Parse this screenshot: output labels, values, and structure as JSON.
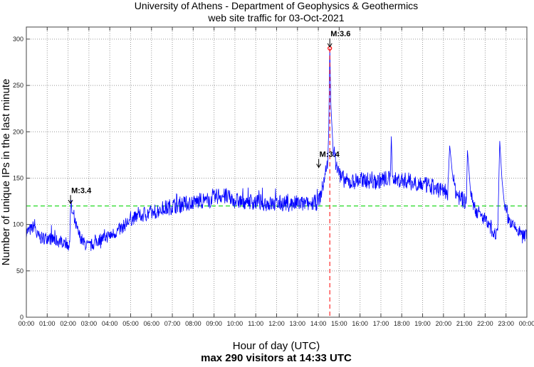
{
  "chart_data": {
    "type": "line",
    "title": [
      "University of Athens - Department of Geophysics & Geothermics",
      "web site traffic for 03-Oct-2021"
    ],
    "xlabel": "Hour of day (UTC)",
    "subxlabel": "max 290 visitors at 14:33 UTC",
    "ylabel": "Number of unique IPs in the last minute",
    "xlim": [
      0,
      24
    ],
    "ylim": [
      0,
      313
    ],
    "grid": true,
    "xticks": [
      "00:00",
      "01:00",
      "02:00",
      "03:00",
      "04:00",
      "05:00",
      "06:00",
      "07:00",
      "08:00",
      "09:00",
      "10:00",
      "11:00",
      "12:00",
      "13:00",
      "14:00",
      "15:00",
      "16:00",
      "17:00",
      "18:00",
      "19:00",
      "20:00",
      "21:00",
      "22:00",
      "23:00",
      "00:00"
    ],
    "yticks": [
      0,
      50,
      100,
      150,
      200,
      250,
      300
    ],
    "reference_line": {
      "y": 120,
      "color": "#33dd33",
      "style": "dashed"
    },
    "max_marker": {
      "x": 14.55,
      "y": 290,
      "color": "#ff0000"
    },
    "series": [
      {
        "name": "unique IPs",
        "color": "#0000ff",
        "points": [
          [
            0,
            92
          ],
          [
            0.25,
            95
          ],
          [
            0.4,
            100
          ],
          [
            0.5,
            88
          ],
          [
            0.75,
            85
          ],
          [
            1,
            86
          ],
          [
            1.25,
            84
          ],
          [
            1.5,
            82
          ],
          [
            1.75,
            82
          ],
          [
            2,
            79
          ],
          [
            2.08,
            78
          ],
          [
            2.12,
            121
          ],
          [
            2.25,
            108
          ],
          [
            2.5,
            90
          ],
          [
            2.75,
            80
          ],
          [
            3,
            76
          ],
          [
            3.25,
            80
          ],
          [
            3.5,
            84
          ],
          [
            3.75,
            86
          ],
          [
            4,
            88
          ],
          [
            4.25,
            91
          ],
          [
            4.5,
            95
          ],
          [
            4.75,
            100
          ],
          [
            5,
            105
          ],
          [
            5.25,
            108
          ],
          [
            5.5,
            110
          ],
          [
            5.75,
            112
          ],
          [
            6,
            112
          ],
          [
            6.25,
            115
          ],
          [
            6.5,
            117
          ],
          [
            6.75,
            118
          ],
          [
            7,
            120
          ],
          [
            7.25,
            121
          ],
          [
            7.5,
            122
          ],
          [
            7.75,
            123
          ],
          [
            8,
            124
          ],
          [
            8.25,
            125
          ],
          [
            8.5,
            126
          ],
          [
            8.75,
            126
          ],
          [
            9,
            128
          ],
          [
            9.25,
            132
          ],
          [
            9.5,
            130
          ],
          [
            9.75,
            128
          ],
          [
            10,
            126
          ],
          [
            10.25,
            125
          ],
          [
            10.5,
            125
          ],
          [
            10.75,
            125
          ],
          [
            11,
            124
          ],
          [
            11.25,
            124
          ],
          [
            11.5,
            123
          ],
          [
            11.75,
            122
          ],
          [
            12,
            122
          ],
          [
            12.25,
            123
          ],
          [
            12.5,
            123
          ],
          [
            12.75,
            122
          ],
          [
            13,
            123
          ],
          [
            13.25,
            122
          ],
          [
            13.5,
            122
          ],
          [
            13.75,
            123
          ],
          [
            14,
            124
          ],
          [
            14.15,
            135
          ],
          [
            14.3,
            150
          ],
          [
            14.45,
            170
          ],
          [
            14.5,
            200
          ],
          [
            14.55,
            290
          ],
          [
            14.6,
            230
          ],
          [
            14.7,
            185
          ],
          [
            14.85,
            165
          ],
          [
            15,
            155
          ],
          [
            15.25,
            148
          ],
          [
            15.5,
            145
          ],
          [
            15.75,
            147
          ],
          [
            16,
            148
          ],
          [
            16.25,
            148
          ],
          [
            16.5,
            147
          ],
          [
            16.75,
            146
          ],
          [
            17,
            148
          ],
          [
            17.25,
            150
          ],
          [
            17.45,
            148
          ],
          [
            17.5,
            195
          ],
          [
            17.55,
            152
          ],
          [
            17.75,
            148
          ],
          [
            18,
            148
          ],
          [
            18.25,
            147
          ],
          [
            18.5,
            145
          ],
          [
            18.75,
            145
          ],
          [
            19,
            143
          ],
          [
            19.25,
            142
          ],
          [
            19.5,
            140
          ],
          [
            19.75,
            138
          ],
          [
            20,
            137
          ],
          [
            20.2,
            135
          ],
          [
            20.3,
            185
          ],
          [
            20.45,
            150
          ],
          [
            20.6,
            135
          ],
          [
            20.75,
            130
          ],
          [
            21,
            125
          ],
          [
            21.1,
            122
          ],
          [
            21.15,
            180
          ],
          [
            21.3,
            135
          ],
          [
            21.5,
            118
          ],
          [
            21.75,
            110
          ],
          [
            22,
            105
          ],
          [
            22.25,
            95
          ],
          [
            22.5,
            90
          ],
          [
            22.6,
            92
          ],
          [
            22.7,
            190
          ],
          [
            22.8,
            150
          ],
          [
            22.95,
            115
          ],
          [
            23.25,
            100
          ],
          [
            23.5,
            95
          ],
          [
            23.75,
            90
          ],
          [
            24,
            88
          ]
        ]
      }
    ],
    "annotations": [
      {
        "label": "M:3.4",
        "x": 2.12,
        "y": 121
      },
      {
        "label": "M:3.4",
        "x": 14.02,
        "y": 160
      },
      {
        "label": "M:3.6",
        "x": 14.55,
        "y": 290
      }
    ]
  }
}
